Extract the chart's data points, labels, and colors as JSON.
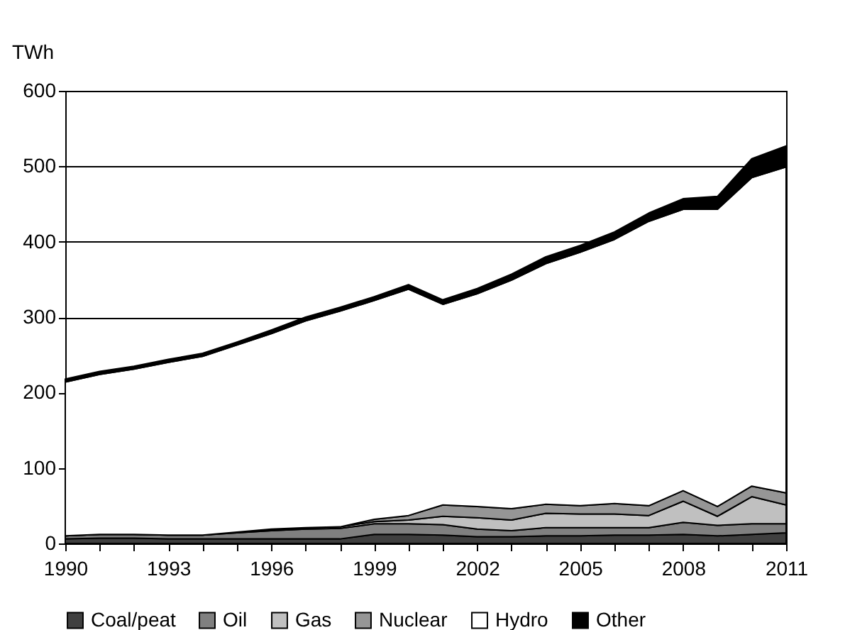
{
  "chart_data": {
    "type": "area",
    "stacked": true,
    "ylabel": "TWh",
    "grid": "y",
    "legend": "bottom",
    "x": [
      1990,
      1991,
      1992,
      1993,
      1994,
      1995,
      1996,
      1997,
      1998,
      1999,
      2000,
      2001,
      2002,
      2003,
      2004,
      2005,
      2006,
      2007,
      2008,
      2009,
      2010,
      2011
    ],
    "xlim": [
      1990,
      2011
    ],
    "xticks": [
      1990,
      {
        "value": 1991,
        "label": null
      },
      {
        "value": 1992,
        "label": null
      },
      1993,
      {
        "value": 1994,
        "label": null
      },
      {
        "value": 1995,
        "label": null
      },
      1996,
      {
        "value": 1997,
        "label": null
      },
      {
        "value": 1998,
        "label": null
      },
      1999,
      {
        "value": 2000,
        "label": null
      },
      {
        "value": 2001,
        "label": null
      },
      2002,
      {
        "value": 2003,
        "label": null
      },
      {
        "value": 2004,
        "label": null
      },
      2005,
      {
        "value": 2006,
        "label": null
      },
      {
        "value": 2007,
        "label": null
      },
      2008,
      {
        "value": 2009,
        "label": null
      },
      {
        "value": 2010,
        "label": null
      },
      2011
    ],
    "ylim": [
      0,
      600
    ],
    "yticks": [
      0,
      100,
      200,
      300,
      400,
      500,
      600
    ],
    "series": [
      {
        "name": "Coal/peat",
        "color": "#404040",
        "values": [
          6,
          7,
          7,
          6,
          6,
          6,
          6,
          6,
          6,
          12,
          12,
          11,
          9,
          9,
          10,
          10,
          11,
          11,
          12,
          10,
          12,
          14
        ]
      },
      {
        "name": "Oil",
        "color": "#808080",
        "values": [
          4,
          5,
          5,
          5,
          5,
          8,
          11,
          13,
          14,
          14,
          14,
          14,
          10,
          8,
          11,
          11,
          10,
          10,
          16,
          14,
          14,
          12
        ]
      },
      {
        "name": "Gas",
        "color": "#c0c0c0",
        "values": [
          0,
          0,
          0,
          0,
          0,
          1,
          1,
          2,
          2,
          3,
          5,
          11,
          15,
          14,
          19,
          18,
          18,
          16,
          28,
          12,
          36,
          25
        ]
      },
      {
        "name": "Nuclear",
        "color": "#969696",
        "values": [
          0,
          0,
          0,
          0,
          0,
          0,
          1,
          0,
          0,
          3,
          6,
          15,
          15,
          15,
          12,
          11,
          14,
          13,
          14,
          13,
          14,
          16
        ]
      },
      {
        "name": "Hydro",
        "color": "#ffffff",
        "values": [
          204,
          212,
          219,
          229,
          237,
          248,
          259,
          274,
          286,
          290,
          300,
          266,
          282,
          303,
          319,
          336,
          350,
          377,
          373,
          394,
          409,
          432
        ]
      },
      {
        "name": "Other",
        "color": "#000000",
        "values": [
          4,
          4,
          4,
          4,
          4,
          4,
          5,
          5,
          5,
          5,
          6,
          6,
          7,
          8,
          9,
          9,
          10,
          11,
          14,
          17,
          25,
          28
        ]
      }
    ]
  }
}
